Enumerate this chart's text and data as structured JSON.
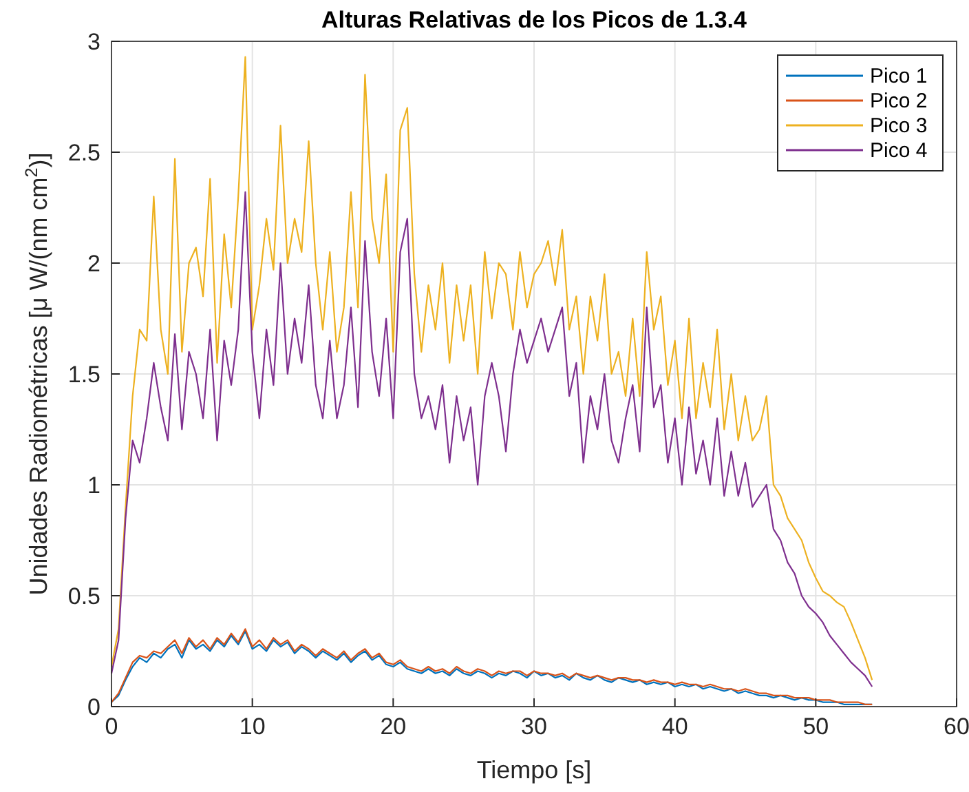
{
  "chart_data": {
    "type": "line",
    "title": "Alturas Relativas de los Picos de 1.3.4",
    "xlabel": "Tiempo [s]",
    "ylabel": "Unidades Radiométricas [μ W/(nm cm$^{2}$)]",
    "x": [
      0,
      0.5,
      1,
      1.5,
      2,
      2.5,
      3,
      3.5,
      4,
      4.5,
      5,
      5.5,
      6,
      6.5,
      7,
      7.5,
      8,
      8.5,
      9,
      9.5,
      10,
      10.5,
      11,
      11.5,
      12,
      12.5,
      13,
      13.5,
      14,
      14.5,
      15,
      15.5,
      16,
      16.5,
      17,
      17.5,
      18,
      18.5,
      19,
      19.5,
      20,
      20.5,
      21,
      21.5,
      22,
      22.5,
      23,
      23.5,
      24,
      24.5,
      25,
      25.5,
      26,
      26.5,
      27,
      27.5,
      28,
      28.5,
      29,
      29.5,
      30,
      30.5,
      31,
      31.5,
      32,
      32.5,
      33,
      33.5,
      34,
      34.5,
      35,
      35.5,
      36,
      36.5,
      37,
      37.5,
      38,
      38.5,
      39,
      39.5,
      40,
      40.5,
      41,
      41.5,
      42,
      42.5,
      43,
      43.5,
      44,
      44.5,
      45,
      45.5,
      46,
      46.5,
      47,
      47.5,
      48,
      48.5,
      49,
      49.5,
      50,
      50.5,
      51,
      51.5,
      52,
      52.5,
      53,
      53.5,
      54
    ],
    "series": [
      {
        "name": "Pico 1",
        "color": "#0072bd",
        "values": [
          0.02,
          0.05,
          0.12,
          0.18,
          0.22,
          0.2,
          0.24,
          0.22,
          0.26,
          0.28,
          0.22,
          0.3,
          0.26,
          0.28,
          0.25,
          0.3,
          0.27,
          0.32,
          0.28,
          0.34,
          0.26,
          0.28,
          0.25,
          0.3,
          0.27,
          0.29,
          0.24,
          0.27,
          0.25,
          0.22,
          0.25,
          0.23,
          0.21,
          0.24,
          0.2,
          0.23,
          0.25,
          0.21,
          0.23,
          0.19,
          0.18,
          0.2,
          0.17,
          0.16,
          0.15,
          0.17,
          0.15,
          0.16,
          0.14,
          0.17,
          0.15,
          0.14,
          0.16,
          0.15,
          0.13,
          0.15,
          0.14,
          0.16,
          0.15,
          0.13,
          0.16,
          0.14,
          0.15,
          0.13,
          0.14,
          0.12,
          0.15,
          0.13,
          0.12,
          0.14,
          0.12,
          0.11,
          0.13,
          0.12,
          0.11,
          0.12,
          0.1,
          0.11,
          0.1,
          0.11,
          0.09,
          0.1,
          0.09,
          0.1,
          0.08,
          0.09,
          0.08,
          0.07,
          0.08,
          0.06,
          0.07,
          0.06,
          0.05,
          0.05,
          0.04,
          0.05,
          0.04,
          0.03,
          0.04,
          0.03,
          0.03,
          0.02,
          0.02,
          0.02,
          0.01,
          0.01,
          0.01,
          0.01,
          0.01
        ]
      },
      {
        "name": "Pico 2",
        "color": "#d95319",
        "values": [
          0.02,
          0.06,
          0.13,
          0.2,
          0.23,
          0.22,
          0.25,
          0.24,
          0.27,
          0.3,
          0.24,
          0.31,
          0.27,
          0.3,
          0.26,
          0.31,
          0.28,
          0.33,
          0.29,
          0.35,
          0.27,
          0.3,
          0.26,
          0.31,
          0.28,
          0.3,
          0.25,
          0.28,
          0.26,
          0.23,
          0.26,
          0.24,
          0.22,
          0.25,
          0.21,
          0.24,
          0.26,
          0.22,
          0.24,
          0.2,
          0.19,
          0.21,
          0.18,
          0.17,
          0.16,
          0.18,
          0.16,
          0.17,
          0.15,
          0.18,
          0.16,
          0.15,
          0.17,
          0.16,
          0.14,
          0.16,
          0.15,
          0.16,
          0.16,
          0.14,
          0.16,
          0.15,
          0.15,
          0.14,
          0.15,
          0.13,
          0.15,
          0.14,
          0.13,
          0.14,
          0.13,
          0.12,
          0.13,
          0.13,
          0.12,
          0.12,
          0.11,
          0.12,
          0.11,
          0.11,
          0.1,
          0.11,
          0.1,
          0.1,
          0.09,
          0.1,
          0.09,
          0.08,
          0.08,
          0.07,
          0.08,
          0.07,
          0.06,
          0.06,
          0.05,
          0.05,
          0.05,
          0.04,
          0.04,
          0.04,
          0.03,
          0.03,
          0.03,
          0.02,
          0.02,
          0.02,
          0.02,
          0.01,
          0.01
        ]
      },
      {
        "name": "Pico 3",
        "color": "#edb120",
        "values": [
          0.18,
          0.35,
          0.9,
          1.4,
          1.7,
          1.65,
          2.3,
          1.7,
          1.5,
          2.47,
          1.6,
          2.0,
          2.07,
          1.85,
          2.38,
          1.55,
          2.13,
          1.8,
          2.3,
          2.93,
          1.7,
          1.9,
          2.2,
          1.97,
          2.62,
          2.0,
          2.2,
          2.05,
          2.55,
          2.0,
          1.7,
          2.05,
          1.6,
          1.8,
          2.32,
          1.8,
          2.85,
          2.2,
          2.0,
          2.4,
          1.6,
          2.6,
          2.7,
          1.95,
          1.6,
          1.9,
          1.7,
          2.0,
          1.55,
          1.9,
          1.65,
          1.9,
          1.5,
          2.05,
          1.75,
          2.0,
          1.95,
          1.7,
          2.05,
          1.8,
          1.95,
          2.0,
          2.1,
          1.9,
          2.15,
          1.7,
          1.85,
          1.5,
          1.85,
          1.65,
          1.95,
          1.5,
          1.6,
          1.4,
          1.75,
          1.4,
          2.05,
          1.7,
          1.85,
          1.45,
          1.65,
          1.3,
          1.75,
          1.3,
          1.55,
          1.35,
          1.7,
          1.25,
          1.5,
          1.2,
          1.4,
          1.2,
          1.25,
          1.4,
          1.0,
          0.95,
          0.85,
          0.8,
          0.75,
          0.65,
          0.58,
          0.52,
          0.5,
          0.47,
          0.45,
          0.38,
          0.3,
          0.22,
          0.12
        ]
      },
      {
        "name": "Pico 4",
        "color": "#7e2f8e",
        "values": [
          0.15,
          0.3,
          0.85,
          1.2,
          1.1,
          1.3,
          1.55,
          1.35,
          1.2,
          1.68,
          1.25,
          1.6,
          1.5,
          1.3,
          1.7,
          1.2,
          1.65,
          1.45,
          1.7,
          2.32,
          1.6,
          1.3,
          1.7,
          1.45,
          2.0,
          1.5,
          1.75,
          1.55,
          1.9,
          1.45,
          1.3,
          1.65,
          1.3,
          1.45,
          1.8,
          1.35,
          2.1,
          1.6,
          1.4,
          1.75,
          1.3,
          2.05,
          2.2,
          1.5,
          1.3,
          1.4,
          1.25,
          1.45,
          1.1,
          1.4,
          1.2,
          1.35,
          1.0,
          1.4,
          1.55,
          1.4,
          1.15,
          1.5,
          1.7,
          1.55,
          1.65,
          1.75,
          1.6,
          1.7,
          1.8,
          1.4,
          1.55,
          1.1,
          1.4,
          1.25,
          1.5,
          1.2,
          1.1,
          1.3,
          1.45,
          1.15,
          1.8,
          1.35,
          1.45,
          1.1,
          1.3,
          1.0,
          1.35,
          1.05,
          1.2,
          1.0,
          1.3,
          0.95,
          1.15,
          0.95,
          1.1,
          0.9,
          0.95,
          1.0,
          0.8,
          0.75,
          0.65,
          0.6,
          0.5,
          0.45,
          0.42,
          0.38,
          0.32,
          0.28,
          0.24,
          0.2,
          0.17,
          0.14,
          0.09
        ]
      }
    ],
    "xlim": [
      0,
      60
    ],
    "xticks": [
      0,
      10,
      20,
      30,
      40,
      50,
      60
    ],
    "ylim": [
      0,
      3
    ],
    "yticks": [
      0,
      0.5,
      1,
      1.5,
      2,
      2.5,
      3
    ],
    "grid": true,
    "legend": "top right",
    "line_style": "solid"
  }
}
